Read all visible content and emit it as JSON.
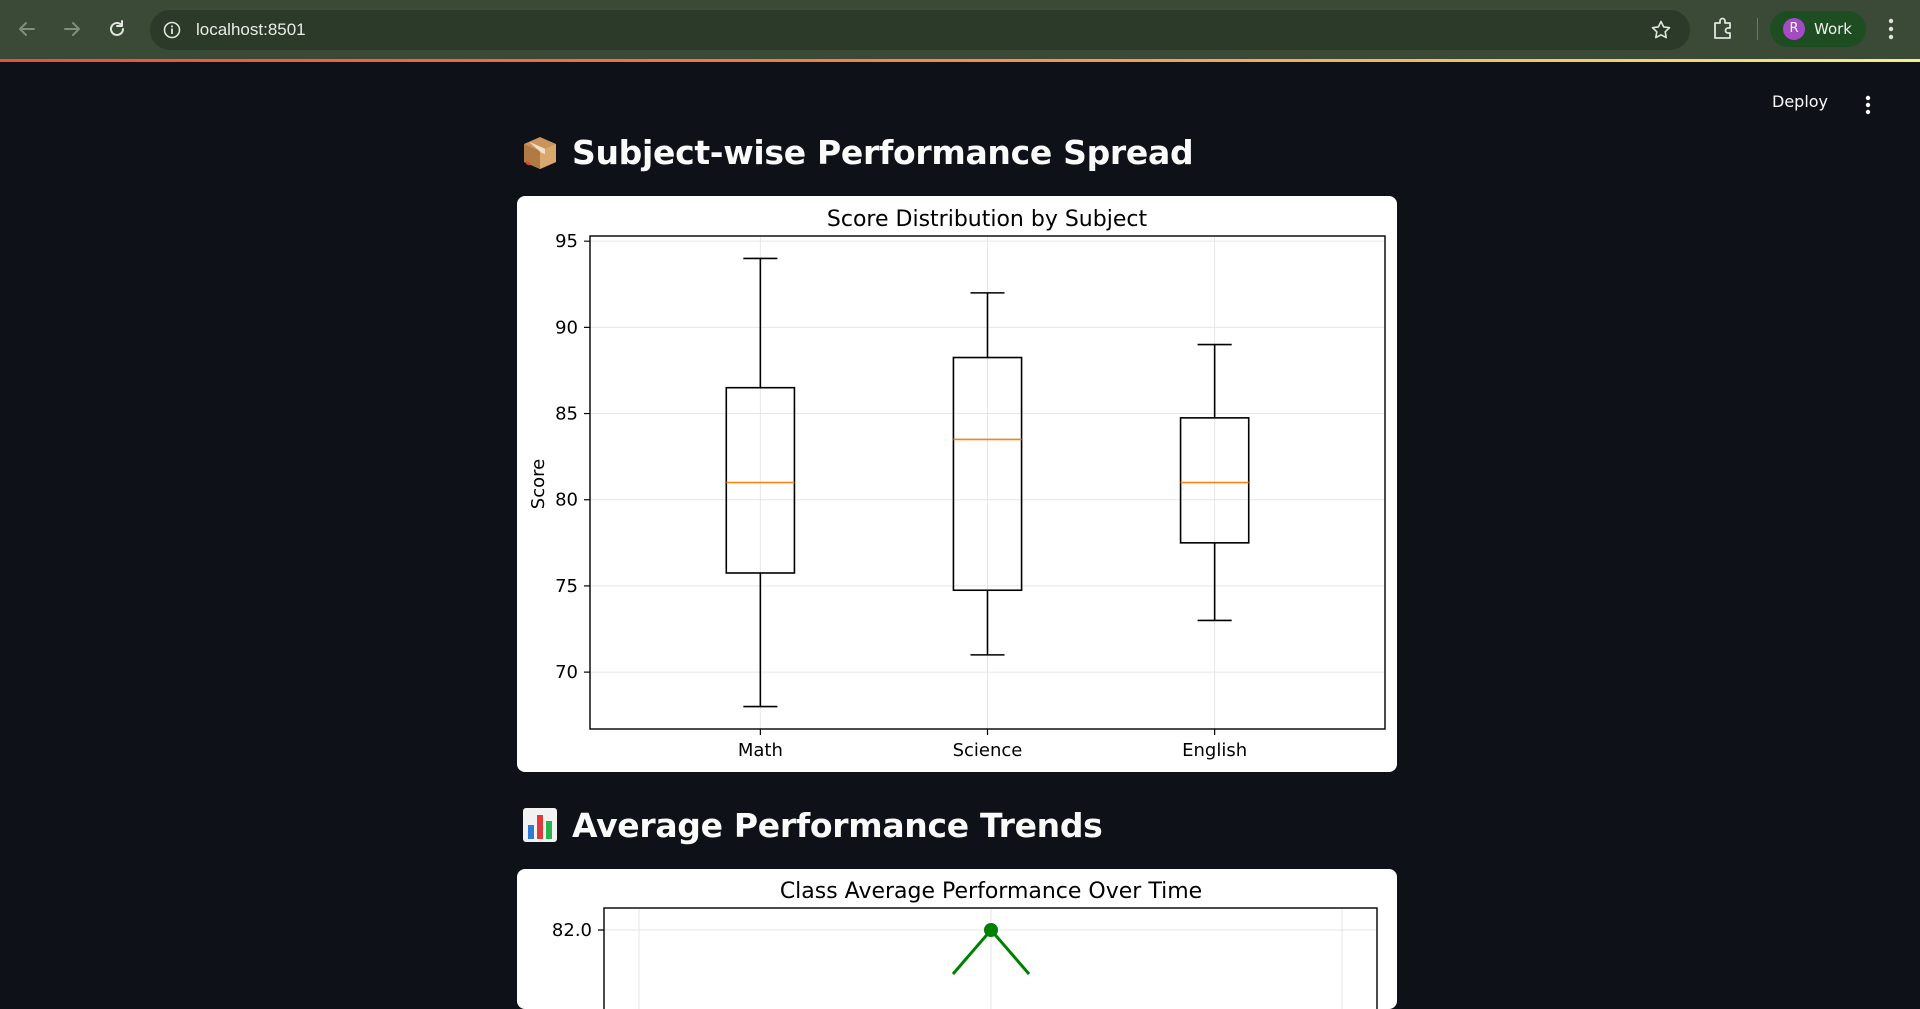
{
  "browser": {
    "url": "localhost:8501",
    "profile_initial": "R",
    "profile_name": "Work"
  },
  "header": {
    "deploy_label": "Deploy"
  },
  "sections": [
    {
      "icon": "package-icon",
      "title": "Subject-wise Performance Spread"
    },
    {
      "icon": "bar-chart-icon",
      "title": "Average Performance Trends"
    }
  ],
  "chart_data": [
    {
      "type": "box",
      "title": "Score Distribution by Subject",
      "xlabel": "",
      "ylabel": "Score",
      "ylim": [
        66.7,
        95.3
      ],
      "yticks": [
        70,
        75,
        80,
        85,
        90,
        95
      ],
      "grid": true,
      "categories": [
        "Math",
        "Science",
        "English"
      ],
      "boxes": [
        {
          "min": 68,
          "q1": 75.75,
          "median": 81,
          "q3": 86.5,
          "max": 94
        },
        {
          "min": 71,
          "q1": 74.75,
          "median": 83.5,
          "q3": 88.25,
          "max": 92
        },
        {
          "min": 73,
          "q1": 77.5,
          "median": 81,
          "q3": 84.75,
          "max": 89
        }
      ],
      "colors": {
        "box": "#000000",
        "median": "#ff7f0e",
        "grid": "#e6e6e6"
      }
    },
    {
      "type": "line",
      "title": "Class Average Performance Over Time",
      "yticks_visible": [
        "82.0"
      ],
      "series": [
        {
          "values_visible": [
            82.0
          ],
          "color": "#008000"
        }
      ]
    }
  ]
}
